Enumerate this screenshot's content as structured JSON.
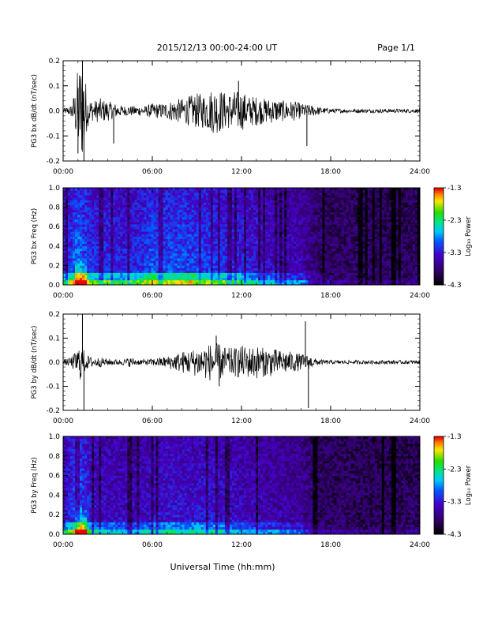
{
  "header": {
    "title": "2015/12/13  00:00-24:00 UT",
    "page": "Page 1/1"
  },
  "footer": {
    "xlabel": "Universal Time (hh:mm)"
  },
  "time_ticks": [
    "00:00",
    "06:00",
    "12:00",
    "18:00",
    "24:00"
  ],
  "colorbar": {
    "title": "Log₁₀ Power",
    "ticks": [
      "-1.3",
      "-2.3",
      "-3.3",
      "-4.3"
    ]
  },
  "chart_data": [
    {
      "type": "line",
      "title": "",
      "ylabel": "PG3 bx dB/dt (nT/sec)",
      "xlim": [
        0,
        24
      ],
      "ylim": [
        -0.2,
        0.2
      ],
      "yticks": [
        "0.2",
        "0.1",
        "0.0",
        "-0.1",
        "-0.2"
      ],
      "envelope": {
        "x_hours": [
          0,
          0.5,
          0.8,
          1.0,
          1.2,
          1.4,
          1.6,
          1.8,
          2.0,
          2.5,
          3.0,
          3.5,
          4.0,
          4.5,
          5.0,
          5.5,
          6.0,
          6.5,
          7.0,
          7.5,
          8.0,
          8.5,
          9.0,
          9.5,
          10.0,
          10.5,
          11.0,
          11.5,
          12.0,
          12.5,
          13.0,
          13.5,
          14.0,
          14.5,
          15.0,
          15.5,
          16.0,
          16.5,
          17.0,
          17.5,
          18.0,
          19,
          20,
          21,
          22,
          23,
          24
        ],
        "amplitude": [
          0.01,
          0.02,
          0.08,
          0.18,
          0.2,
          0.2,
          0.07,
          0.05,
          0.04,
          0.05,
          0.04,
          0.03,
          0.02,
          0.02,
          0.02,
          0.02,
          0.03,
          0.03,
          0.035,
          0.045,
          0.05,
          0.06,
          0.07,
          0.07,
          0.09,
          0.09,
          0.07,
          0.08,
          0.08,
          0.06,
          0.06,
          0.05,
          0.05,
          0.045,
          0.04,
          0.04,
          0.03,
          0.025,
          0.02,
          0.012,
          0.01,
          0.008,
          0.008,
          0.008,
          0.008,
          0.008,
          0.008
        ]
      },
      "spikes": [
        [
          1.0,
          -0.17
        ],
        [
          1.3,
          0.2
        ],
        [
          1.4,
          -0.2
        ],
        [
          3.4,
          -0.13
        ],
        [
          11.8,
          0.12
        ],
        [
          16.4,
          -0.14
        ]
      ]
    },
    {
      "type": "heatmap",
      "title": "",
      "ylabel": "PG3 bx Freq (Hz)",
      "xlim": [
        0,
        24
      ],
      "ylim": [
        0,
        1.0
      ],
      "yticks": [
        "1.0",
        "0.8",
        "0.6",
        "0.4",
        "0.2",
        "0.0"
      ],
      "colorbar_range": [
        -4.3,
        -1.3
      ],
      "activity": {
        "x_hours": [
          0,
          1,
          2,
          3,
          4,
          5,
          6,
          7,
          8,
          9,
          10,
          11,
          12,
          13,
          14,
          15,
          16,
          17,
          18,
          19,
          20,
          21,
          22,
          23,
          24
        ],
        "level": [
          0.45,
          0.75,
          0.55,
          0.55,
          0.5,
          0.55,
          0.65,
          0.62,
          0.65,
          0.62,
          0.58,
          0.55,
          0.5,
          0.45,
          0.4,
          0.35,
          0.35,
          0.15,
          0.12,
          0.1,
          0.1,
          0.1,
          0.1,
          0.1,
          0.1
        ]
      }
    },
    {
      "type": "line",
      "title": "",
      "ylabel": "PG3 by dB/dt (nT/sec)",
      "xlim": [
        0,
        24
      ],
      "ylim": [
        -0.2,
        0.2
      ],
      "yticks": [
        "0.2",
        "0.1",
        "0.0",
        "-0.1",
        "-0.2"
      ],
      "envelope": {
        "x_hours": [
          0,
          0.5,
          0.8,
          1.0,
          1.2,
          1.4,
          1.6,
          1.8,
          2.0,
          2.5,
          3.0,
          3.5,
          4.0,
          4.5,
          5.0,
          5.5,
          6.0,
          6.5,
          7.0,
          7.5,
          8.0,
          8.5,
          9.0,
          9.5,
          10.0,
          10.5,
          11.0,
          11.5,
          12.0,
          12.5,
          13.0,
          13.5,
          14.0,
          14.5,
          15.0,
          15.5,
          16.0,
          16.5,
          17.0,
          17.5,
          18.0,
          19,
          20,
          21,
          22,
          23,
          24
        ],
        "amplitude": [
          0.01,
          0.02,
          0.04,
          0.06,
          0.08,
          0.05,
          0.03,
          0.025,
          0.02,
          0.02,
          0.015,
          0.012,
          0.012,
          0.02,
          0.012,
          0.012,
          0.015,
          0.02,
          0.025,
          0.035,
          0.045,
          0.05,
          0.06,
          0.07,
          0.08,
          0.08,
          0.06,
          0.06,
          0.07,
          0.065,
          0.07,
          0.06,
          0.06,
          0.05,
          0.05,
          0.04,
          0.035,
          0.03,
          0.015,
          0.01,
          0.008,
          0.008,
          0.008,
          0.008,
          0.008,
          0.008,
          0.008
        ]
      },
      "spikes": [
        [
          1.3,
          0.2
        ],
        [
          1.4,
          -0.2
        ],
        [
          10.3,
          0.11
        ],
        [
          10.5,
          -0.1
        ],
        [
          16.3,
          0.17
        ],
        [
          16.5,
          -0.19
        ]
      ]
    },
    {
      "type": "heatmap",
      "title": "",
      "ylabel": "PG3 by Freq (Hz)",
      "xlim": [
        0,
        24
      ],
      "ylim": [
        0,
        1.0
      ],
      "yticks": [
        "1.0",
        "0.8",
        "0.6",
        "0.4",
        "0.2",
        "0.0"
      ],
      "colorbar_range": [
        -4.3,
        -1.3
      ],
      "activity": {
        "x_hours": [
          0,
          1,
          2,
          3,
          4,
          5,
          6,
          7,
          8,
          9,
          10,
          11,
          12,
          13,
          14,
          15,
          16,
          17,
          18,
          19,
          20,
          21,
          22,
          23,
          24
        ],
        "level": [
          0.4,
          0.7,
          0.45,
          0.4,
          0.38,
          0.38,
          0.42,
          0.45,
          0.45,
          0.45,
          0.45,
          0.42,
          0.38,
          0.36,
          0.34,
          0.3,
          0.28,
          0.12,
          0.1,
          0.1,
          0.08,
          0.08,
          0.08,
          0.08,
          0.08
        ]
      }
    }
  ]
}
